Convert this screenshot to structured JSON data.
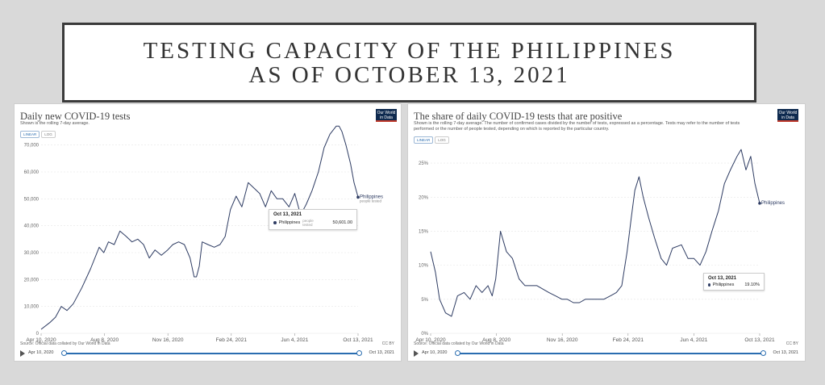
{
  "header": {
    "line1": "TESTING CAPACITY OF THE PHILIPPINES",
    "line2": "AS OF OCTOBER 13, 2021"
  },
  "colors": {
    "series": "#2d3b62",
    "accent": "#2a6db0",
    "grid": "#e6e6e6"
  },
  "left_panel": {
    "title": "Daily new COVID-19 tests",
    "subtitle": "Shown is the rolling 7-day average.",
    "logo_line1": "Our World",
    "logo_line2": "in Data",
    "toggle_linear": "LINEAR",
    "toggle_log": "LOG",
    "source": "Source: Official data collated by Our World in Data",
    "license": "CC BY",
    "timeline_start": "Apr 10, 2020",
    "timeline_end": "Oct 13, 2021",
    "end_label": "Philippines",
    "end_sublabel": "people tested",
    "tooltip": {
      "date": "Oct 13, 2021",
      "series": "Philippines",
      "note": "people tested",
      "value": "50,601.00"
    }
  },
  "right_panel": {
    "title": "The share of daily COVID-19 tests that are positive",
    "subtitle": "Shown is the rolling 7-day average. The number of confirmed cases divided by the number of tests, expressed as a percentage. Tests may refer to the number of tests performed or the number of people tested, depending on which is reported by the particular country.",
    "logo_line1": "Our World",
    "logo_line2": "in Data",
    "toggle_linear": "LINEAR",
    "toggle_log": "LOG",
    "source": "Source: Official data collated by Our World in Data",
    "license": "CC BY",
    "timeline_start": "Apr 10, 2020",
    "timeline_end": "Oct 13, 2021",
    "end_label": "Philippines",
    "tooltip": {
      "date": "Oct 13, 2021",
      "series": "Philippines",
      "value": "19.10%"
    }
  },
  "chart_data": [
    {
      "type": "line",
      "title": "Daily new COVID-19 tests",
      "subtitle": "Shown is the rolling 7-day average.",
      "x_ticks": [
        "Apr 10, 2020",
        "Aug 8, 2020",
        "Nov 16, 2020",
        "Feb 24, 2021",
        "Jun 4, 2021",
        "Oct 13, 2021"
      ],
      "y_ticks": [
        "0",
        "10,000",
        "20,000",
        "30,000",
        "40,000",
        "50,000",
        "60,000",
        "70,000"
      ],
      "ylim": [
        0,
        72000
      ],
      "grid": true,
      "series": [
        {
          "name": "Philippines",
          "x": [
            "2020-04-10",
            "2020-04-25",
            "2020-05-05",
            "2020-05-15",
            "2020-05-25",
            "2020-06-05",
            "2020-06-20",
            "2020-07-05",
            "2020-07-20",
            "2020-07-28",
            "2020-08-05",
            "2020-08-15",
            "2020-08-25",
            "2020-09-05",
            "2020-09-15",
            "2020-09-25",
            "2020-10-05",
            "2020-10-15",
            "2020-10-25",
            "2020-11-05",
            "2020-11-16",
            "2020-11-25",
            "2020-12-05",
            "2020-12-15",
            "2020-12-25",
            "2021-01-01",
            "2021-01-05",
            "2021-01-10",
            "2021-01-15",
            "2021-01-25",
            "2021-02-05",
            "2021-02-15",
            "2021-02-24",
            "2021-03-05",
            "2021-03-15",
            "2021-03-25",
            "2021-04-05",
            "2021-04-15",
            "2021-04-25",
            "2021-05-05",
            "2021-05-15",
            "2021-05-25",
            "2021-06-04",
            "2021-06-15",
            "2021-06-25",
            "2021-07-05",
            "2021-07-15",
            "2021-07-25",
            "2021-08-05",
            "2021-08-15",
            "2021-08-25",
            "2021-09-05",
            "2021-09-10",
            "2021-09-15",
            "2021-09-22",
            "2021-09-30",
            "2021-10-06",
            "2021-10-13"
          ],
          "values": [
            1500,
            4000,
            6000,
            10000,
            8500,
            11000,
            17000,
            24000,
            32000,
            30000,
            34000,
            33000,
            38000,
            36000,
            34000,
            35000,
            33000,
            28000,
            31000,
            29000,
            31000,
            33000,
            34000,
            33000,
            28000,
            21000,
            21000,
            25000,
            34000,
            33000,
            32000,
            33000,
            36000,
            46000,
            51000,
            47000,
            56000,
            54000,
            52000,
            47000,
            53000,
            50000,
            50000,
            47000,
            52000,
            44000,
            48000,
            53000,
            60000,
            69000,
            74000,
            77000,
            77000,
            75000,
            70000,
            63000,
            56000,
            50601
          ]
        }
      ]
    },
    {
      "type": "line",
      "title": "The share of daily COVID-19 tests that are positive",
      "x_ticks": [
        "Apr 10, 2020",
        "Aug 8, 2020",
        "Nov 16, 2020",
        "Feb 24, 2021",
        "Jun 4, 2021",
        "Oct 13, 2021"
      ],
      "y_ticks": [
        "0%",
        "5%",
        "10%",
        "15%",
        "20%",
        "25%"
      ],
      "ylim": [
        0,
        27.5
      ],
      "grid": true,
      "series": [
        {
          "name": "Philippines",
          "x": [
            "2020-04-10",
            "2020-04-18",
            "2020-04-25",
            "2020-05-05",
            "2020-05-15",
            "2020-05-25",
            "2020-06-05",
            "2020-06-15",
            "2020-06-25",
            "2020-07-05",
            "2020-07-15",
            "2020-07-22",
            "2020-07-28",
            "2020-08-05",
            "2020-08-15",
            "2020-08-25",
            "2020-09-05",
            "2020-09-15",
            "2020-09-25",
            "2020-10-05",
            "2020-10-15",
            "2020-10-25",
            "2020-11-05",
            "2020-11-16",
            "2020-11-25",
            "2020-12-05",
            "2020-12-15",
            "2020-12-25",
            "2021-01-05",
            "2021-01-15",
            "2021-01-25",
            "2021-02-05",
            "2021-02-15",
            "2021-02-24",
            "2021-03-05",
            "2021-03-12",
            "2021-03-18",
            "2021-03-25",
            "2021-04-01",
            "2021-04-10",
            "2021-04-20",
            "2021-05-01",
            "2021-05-10",
            "2021-05-20",
            "2021-06-04",
            "2021-06-15",
            "2021-06-25",
            "2021-07-05",
            "2021-07-15",
            "2021-07-25",
            "2021-08-05",
            "2021-08-15",
            "2021-08-25",
            "2021-09-05",
            "2021-09-12",
            "2021-09-20",
            "2021-09-28",
            "2021-10-05",
            "2021-10-13"
          ],
          "values": [
            12,
            9,
            5,
            3,
            2.5,
            5.5,
            6,
            5,
            7,
            6,
            7,
            5.5,
            8,
            15,
            12,
            11,
            8,
            7,
            7,
            7,
            6.5,
            6,
            5.5,
            5,
            5,
            4.5,
            4.5,
            5,
            5,
            5,
            5,
            5.5,
            6,
            7,
            12,
            17,
            21,
            23,
            20,
            17,
            14,
            11,
            10,
            12.5,
            13,
            11,
            11,
            10,
            12,
            15,
            18,
            22,
            24,
            26,
            27,
            24,
            26,
            22,
            19.1
          ]
        }
      ]
    }
  ]
}
